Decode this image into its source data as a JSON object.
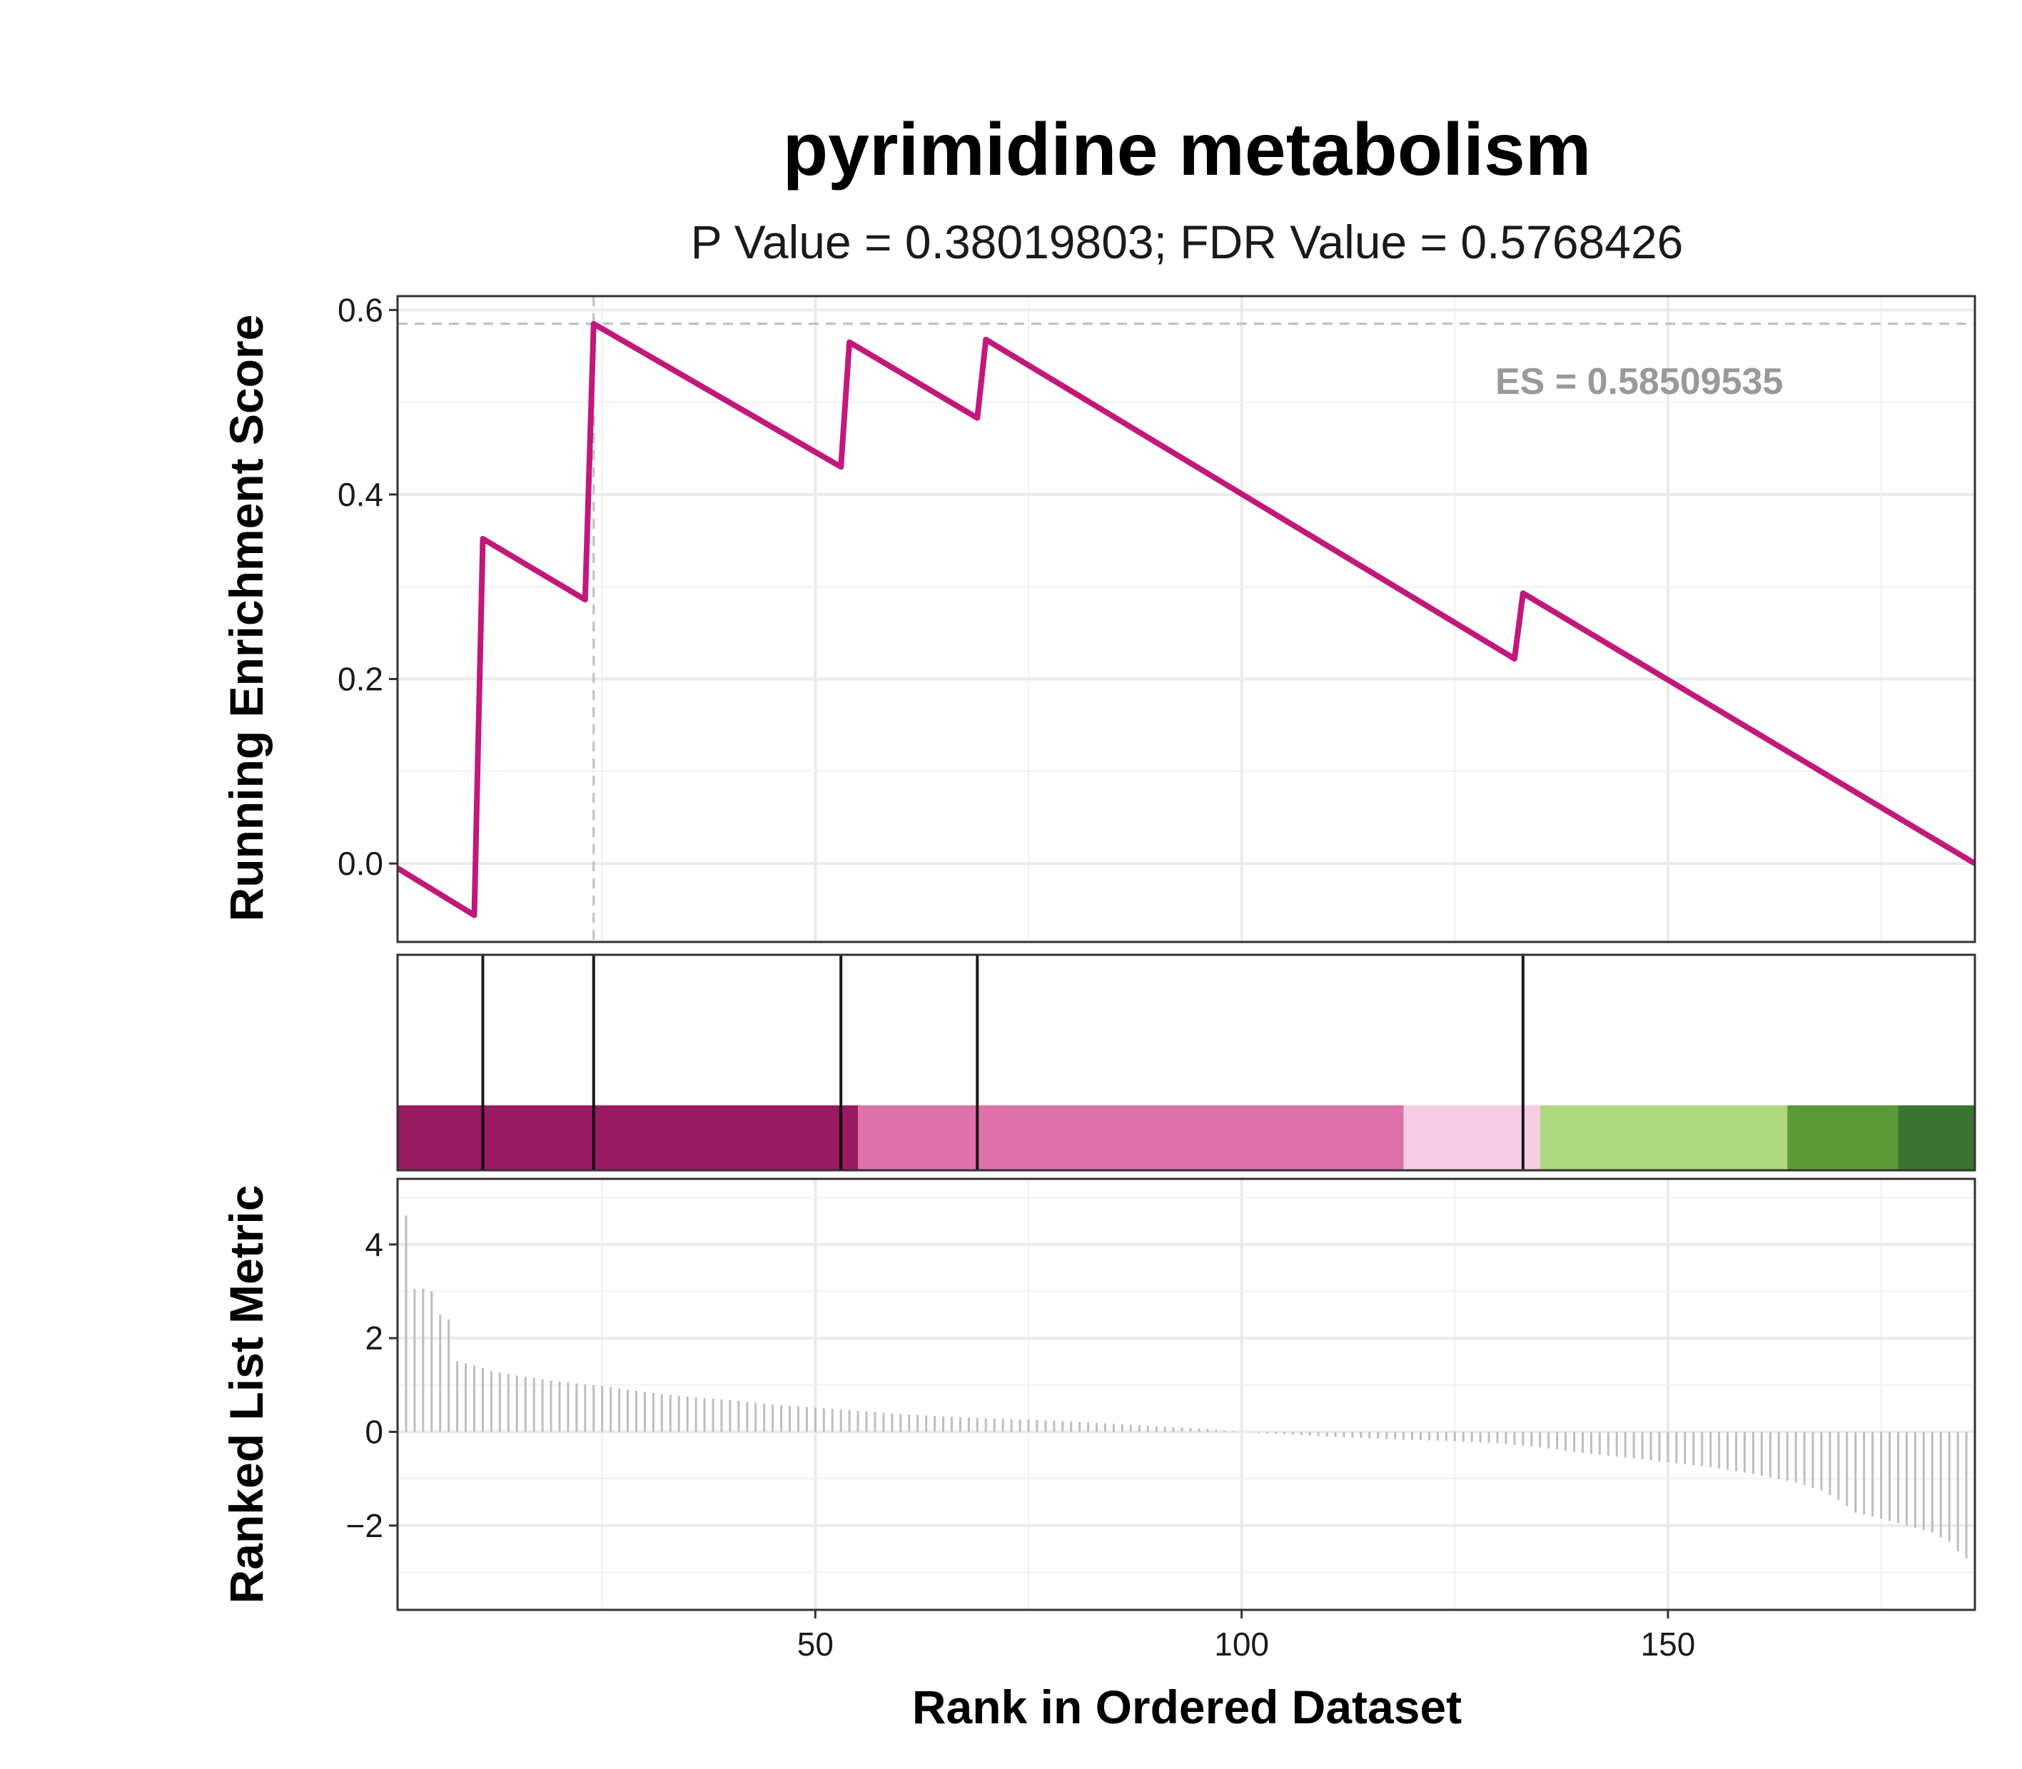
{
  "chart_data": {
    "type": "line",
    "title": "pyrimidine metabolism",
    "subtitle": "P Value = 0.38019803; FDR Value = 0.5768426",
    "xlabel": "Rank in Ordered Dataset",
    "xlim": [
      1,
      186
    ],
    "x_ticks": [
      50,
      100,
      150
    ],
    "panels": {
      "running_es": {
        "ylabel": "Running Enrichment Score",
        "ylim": [
          -0.085,
          0.615
        ],
        "y_ticks": [
          0.0,
          0.2,
          0.4,
          0.6
        ],
        "y_tick_labels": [
          "0.0",
          "0.2",
          "0.4",
          "0.6"
        ],
        "es_label": "ES = 0.58509535",
        "es_value": 0.58509535,
        "es_rank": 24,
        "line_color": "#C2187B",
        "points": [
          [
            1,
            -0.005
          ],
          [
            10,
            -0.056
          ],
          [
            11,
            0.352
          ],
          [
            23,
            0.286
          ],
          [
            24,
            0.585
          ],
          [
            53,
            0.43
          ],
          [
            54,
            0.565
          ],
          [
            69,
            0.483
          ],
          [
            70,
            0.568
          ],
          [
            132,
            0.222
          ],
          [
            133,
            0.293
          ],
          [
            186,
            0.0
          ]
        ]
      },
      "hits": {
        "gene_ranks": [
          11,
          24,
          53,
          69,
          133
        ],
        "color_bands": [
          {
            "start": 1,
            "end": 55,
            "color": "#9A1A60"
          },
          {
            "start": 55,
            "end": 119,
            "color": "#DE72A9"
          },
          {
            "start": 119,
            "end": 135,
            "color": "#F6CDE5"
          },
          {
            "start": 135,
            "end": 164,
            "color": "#AED77F"
          },
          {
            "start": 164,
            "end": 177,
            "color": "#5C9A38"
          },
          {
            "start": 177,
            "end": 186,
            "color": "#3B7432"
          }
        ]
      },
      "ranked_metric": {
        "ylabel": "Ranked List Metric",
        "ylim": [
          -3.8,
          5.4
        ],
        "y_ticks": [
          -2,
          0,
          2,
          4
        ],
        "y_tick_labels": [
          "−2",
          "0",
          "2",
          "4"
        ],
        "bar_color": "#BEBEBE",
        "anchors": [
          [
            1,
            4.95
          ],
          [
            2,
            4.62
          ],
          [
            3,
            3.05
          ],
          [
            4,
            3.05
          ],
          [
            5,
            3.0
          ],
          [
            6,
            2.5
          ],
          [
            7,
            2.4
          ],
          [
            8,
            1.5
          ],
          [
            10,
            1.42
          ],
          [
            12,
            1.3
          ],
          [
            15,
            1.2
          ],
          [
            20,
            1.07
          ],
          [
            25,
            0.98
          ],
          [
            30,
            0.85
          ],
          [
            35,
            0.75
          ],
          [
            40,
            0.68
          ],
          [
            45,
            0.58
          ],
          [
            50,
            0.52
          ],
          [
            55,
            0.45
          ],
          [
            60,
            0.38
          ],
          [
            65,
            0.33
          ],
          [
            70,
            0.29
          ],
          [
            75,
            0.26
          ],
          [
            80,
            0.22
          ],
          [
            85,
            0.17
          ],
          [
            90,
            0.12
          ],
          [
            95,
            0.07
          ],
          [
            100,
            0.0
          ],
          [
            105,
            -0.05
          ],
          [
            110,
            -0.1
          ],
          [
            115,
            -0.14
          ],
          [
            120,
            -0.17
          ],
          [
            125,
            -0.2
          ],
          [
            130,
            -0.24
          ],
          [
            135,
            -0.33
          ],
          [
            140,
            -0.45
          ],
          [
            145,
            -0.55
          ],
          [
            150,
            -0.65
          ],
          [
            155,
            -0.75
          ],
          [
            160,
            -0.9
          ],
          [
            165,
            -1.08
          ],
          [
            168,
            -1.25
          ],
          [
            170,
            -1.45
          ],
          [
            172,
            -1.72
          ],
          [
            175,
            -1.85
          ],
          [
            178,
            -2.0
          ],
          [
            181,
            -2.15
          ],
          [
            183,
            -2.35
          ],
          [
            184,
            -2.55
          ],
          [
            185,
            -2.7
          ],
          [
            186,
            -2.85
          ]
        ]
      }
    }
  }
}
